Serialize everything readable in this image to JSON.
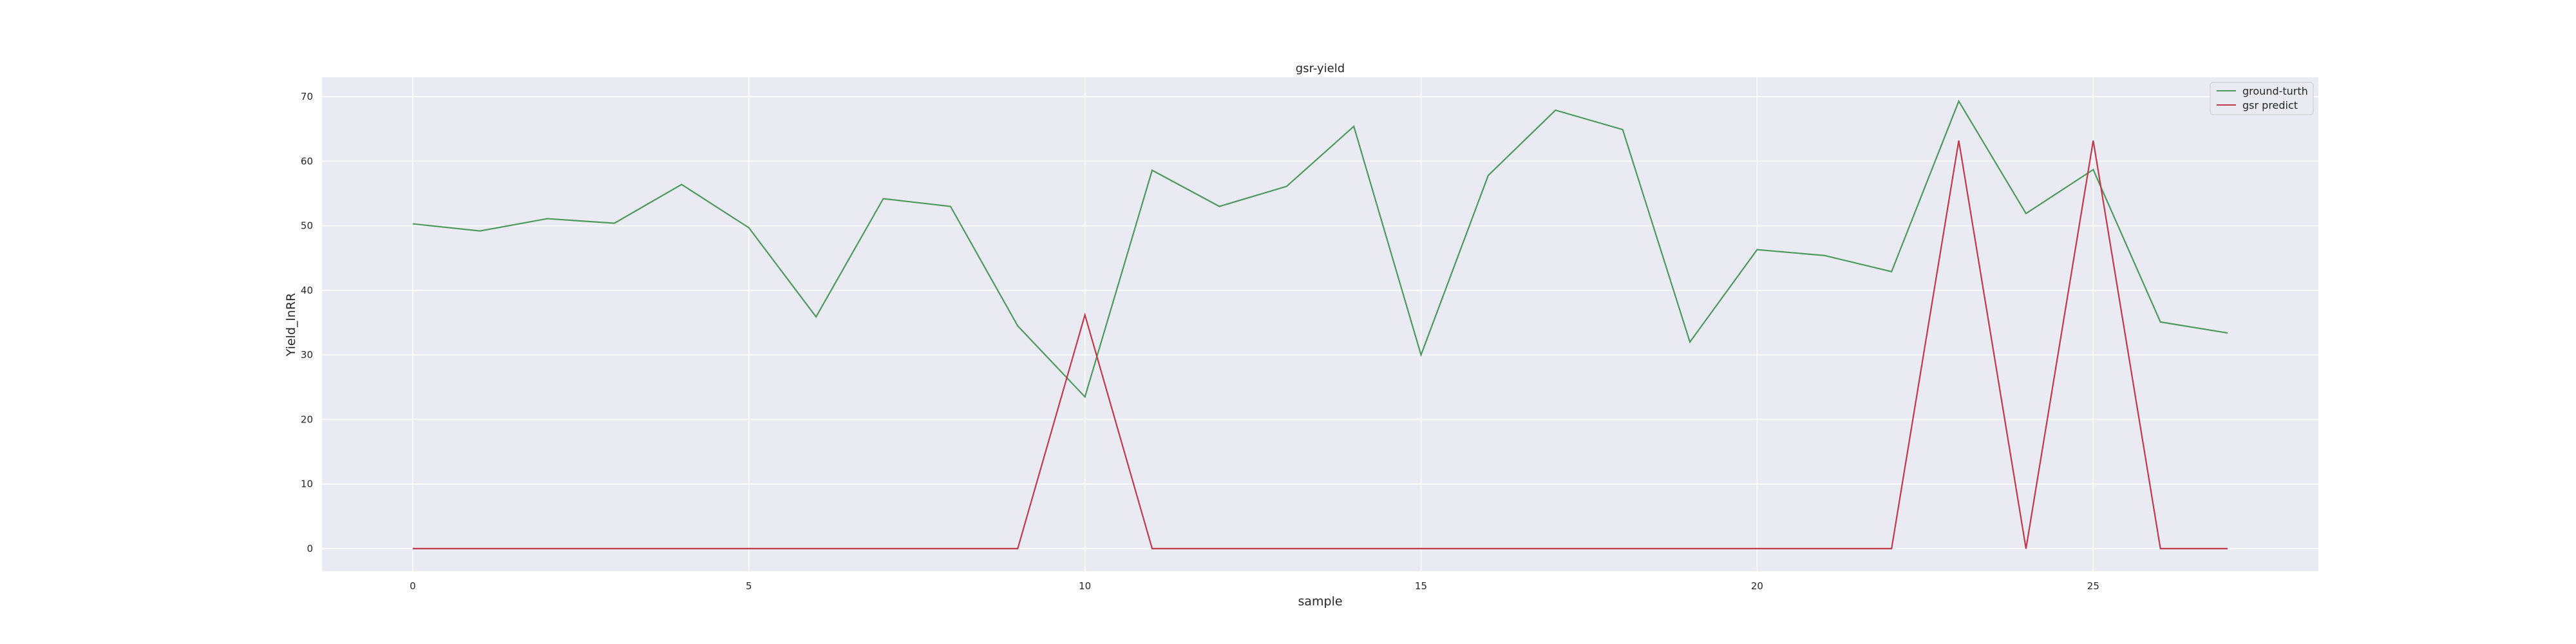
{
  "chart_data": {
    "type": "line",
    "title": "gsr-yield",
    "xlabel": "sample",
    "ylabel": "Yield_lnRR",
    "xlim": [
      -1.35,
      28.35
    ],
    "ylim": [
      -3.5,
      73
    ],
    "x_ticks": [
      0,
      5,
      10,
      15,
      20,
      25
    ],
    "y_ticks": [
      0,
      10,
      20,
      30,
      40,
      50,
      60,
      70
    ],
    "grid": true,
    "legend_position": "top-right",
    "x": [
      0,
      1,
      2,
      3,
      4,
      5,
      6,
      7,
      8,
      9,
      10,
      11,
      12,
      13,
      14,
      15,
      16,
      17,
      18,
      19,
      20,
      21,
      22,
      23,
      24,
      25,
      26,
      27
    ],
    "series": [
      {
        "name": "ground-turth",
        "color": "#4c9a5c",
        "values": [
          50.3,
          49.2,
          51.1,
          50.4,
          56.4,
          49.7,
          35.9,
          54.2,
          53.0,
          34.5,
          23.5,
          58.6,
          53.0,
          56.1,
          65.4,
          30.0,
          57.8,
          67.9,
          64.9,
          32.0,
          46.3,
          45.4,
          42.9,
          69.3,
          51.9,
          58.7,
          35.1,
          33.4
        ]
      },
      {
        "name": "gsr predict",
        "color": "#c0394b",
        "values": [
          0,
          0,
          0,
          0,
          0,
          0,
          0,
          0,
          0,
          0,
          36.2,
          0,
          0,
          0,
          0,
          0,
          0,
          0,
          0,
          0,
          0,
          0,
          0,
          63.2,
          0,
          63.2,
          0,
          0
        ]
      }
    ]
  }
}
